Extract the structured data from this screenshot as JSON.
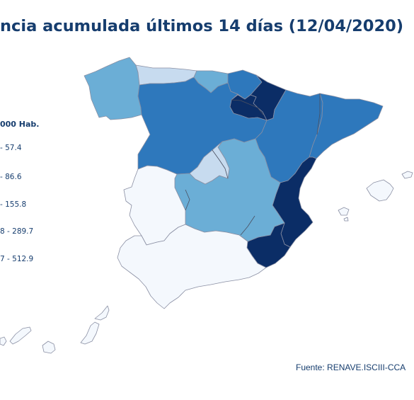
{
  "title": "ncia acumulada últimos 14 días (12/04/2020)",
  "legend": {
    "title": "000 Hab.",
    "classes": [
      {
        "label": "- 57.4",
        "color": "#5f9fd3"
      },
      {
        "label": "- 86.6",
        "color": "#2b78c2"
      },
      {
        "label": "- 155.8",
        "color": "#0f5aa5"
      },
      {
        "label": "8 - 289.7",
        "color": "#0b2f6b"
      },
      {
        "label": "7 - 512.9",
        "color": "#081f4e"
      }
    ]
  },
  "source": "Fuente: RENAVE.ISCIII-CCA",
  "colors": {
    "very_light": "#f4f8fd",
    "light": "#c7dbef",
    "medium_light": "#6baed6",
    "medium": "#2e78bc",
    "dark": "#0b2d66",
    "text": "#163d6e"
  },
  "regions": [
    {
      "name": "Galicia",
      "class": "medium_light"
    },
    {
      "name": "Asturias",
      "class": "light"
    },
    {
      "name": "Cantabria",
      "class": "medium_light"
    },
    {
      "name": "País Vasco",
      "class": "medium"
    },
    {
      "name": "Navarra",
      "class": "dark"
    },
    {
      "name": "La Rioja",
      "class": "dark"
    },
    {
      "name": "Castilla y León",
      "class": "medium"
    },
    {
      "name": "Aragón",
      "class": "medium"
    },
    {
      "name": "Cataluña",
      "class": "medium"
    },
    {
      "name": "Madrid",
      "class": "dark"
    },
    {
      "name": "Castilla-La Mancha",
      "class": "dark"
    },
    {
      "name": "Extremadura",
      "class": "medium_light"
    },
    {
      "name": "Comunitat Valenciana",
      "class": "light"
    },
    {
      "name": "Murcia",
      "class": "very_light"
    },
    {
      "name": "Andalucía",
      "class": "very_light"
    },
    {
      "name": "Illes Balears",
      "class": "very_light"
    },
    {
      "name": "Canarias",
      "class": "very_light"
    }
  ]
}
